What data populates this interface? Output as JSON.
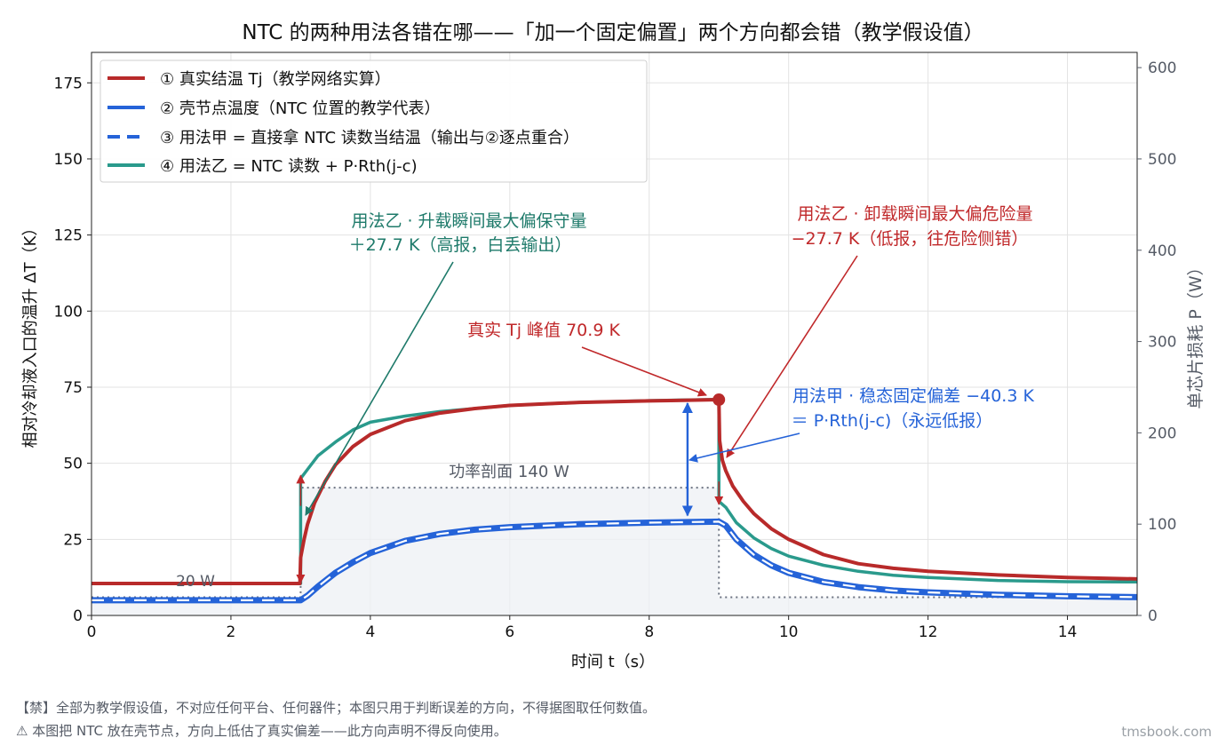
{
  "chart_data": {
    "type": "line",
    "title": "NTC 的两种用法各错在哪——「加一个固定偏置」两个方向都会错（教学假设值）",
    "xlabel": "时间 t（s）",
    "ylabel": "相对冷却液入口的温升 ΔT（K）",
    "y2label": "单芯片损耗 P（W）",
    "xlim": [
      0,
      15
    ],
    "ylim": [
      0,
      185
    ],
    "y2lim": [
      0,
      616.67
    ],
    "xticks": [
      "0",
      "2",
      "4",
      "6",
      "8",
      "10",
      "12",
      "14"
    ],
    "yticks": [
      "0",
      "25",
      "50",
      "75",
      "100",
      "125",
      "150",
      "175"
    ],
    "y2ticks": [
      "0",
      "100",
      "200",
      "300",
      "400",
      "500",
      "600"
    ],
    "grid": true,
    "legend_position": "top-left",
    "legend": [
      "① 真实结温 Tj（教学网络实算）",
      "② 壳节点温度（NTC 位置的教学代表）",
      "③ 用法甲 = 直接拿 NTC 读数当结温（输出与②逐点重合）",
      "④ 用法乙 = NTC 读数 + P·Rth(j-c)"
    ],
    "colors": {
      "tj": "#b82a2a",
      "case": "#2563d8",
      "methodA": "#2563d8",
      "methodB": "#2a9a8c",
      "power": "#6b7280",
      "annGreen": "#1e7a6a",
      "annRed": "#c0282a",
      "annBlue": "#2563d8"
    },
    "series": [
      {
        "name": "① 真实结温 Tj（教学网络实算）",
        "x": [
          0,
          2.99,
          3.0,
          3.05,
          3.1,
          3.2,
          3.35,
          3.5,
          3.75,
          4,
          4.5,
          5,
          5.5,
          6,
          7,
          8,
          9.0,
          9.01,
          9.05,
          9.1,
          9.2,
          9.35,
          9.5,
          9.75,
          10,
          10.5,
          11,
          11.5,
          12,
          13,
          14,
          15
        ],
        "y": [
          10.5,
          10.5,
          19,
          25,
          30,
          37,
          44,
          49.5,
          55.5,
          59.5,
          64,
          66.5,
          68,
          69,
          70,
          70.5,
          70.9,
          57.5,
          51,
          47.5,
          42.5,
          37.5,
          33.5,
          28.5,
          25,
          20,
          17,
          15.5,
          14.5,
          13.3,
          12.5,
          12.0
        ]
      },
      {
        "name": "② 壳节点温度（NTC 位置的教学代表）",
        "x": [
          0,
          3.0,
          3.1,
          3.25,
          3.5,
          3.75,
          4,
          4.5,
          5,
          5.5,
          6,
          7,
          8,
          9.0,
          9.1,
          9.25,
          9.5,
          9.75,
          10,
          10.5,
          11,
          11.5,
          12,
          13,
          14,
          15
        ],
        "y": [
          5,
          5,
          6.5,
          9.5,
          14,
          17.5,
          20.5,
          24.5,
          26.8,
          28.2,
          29.0,
          30.0,
          30.5,
          30.8,
          29.5,
          25,
          20,
          16.5,
          14,
          11,
          9.3,
          8.2,
          7.6,
          6.8,
          6.3,
          6.0
        ]
      },
      {
        "name": "③ 用法甲 = 直接拿 NTC 读数当结温（输出与②逐点重合）",
        "x": [
          0,
          3.0,
          3.1,
          3.25,
          3.5,
          3.75,
          4,
          4.5,
          5,
          5.5,
          6,
          7,
          8,
          9.0,
          9.1,
          9.25,
          9.5,
          9.75,
          10,
          10.5,
          11,
          11.5,
          12,
          13,
          14,
          15
        ],
        "y": [
          5,
          5,
          6.5,
          9.5,
          14,
          17.5,
          20.5,
          24.5,
          26.8,
          28.2,
          29.0,
          30.0,
          30.5,
          30.8,
          29.5,
          25,
          20,
          16.5,
          14,
          11,
          9.3,
          8.2,
          7.6,
          6.8,
          6.3,
          6.0
        ]
      },
      {
        "name": "④ 用法乙 = NTC 读数 + P·Rth(j-c)",
        "x": [
          0,
          3.0,
          3.0,
          3.1,
          3.25,
          3.5,
          3.75,
          4,
          4.5,
          5,
          5.5,
          6,
          7,
          8,
          9.0,
          9.0,
          9.1,
          9.25,
          9.5,
          9.75,
          10,
          10.5,
          11,
          11.5,
          12,
          13,
          14,
          15
        ],
        "y": [
          10.5,
          10.5,
          45,
          48,
          52.5,
          57,
          61,
          63.5,
          65.5,
          67,
          68,
          69,
          70,
          70.6,
          71,
          37.5,
          35.5,
          30.5,
          25.5,
          22,
          19.5,
          16.5,
          14.5,
          13.2,
          12.5,
          11.5,
          11.1,
          11.0
        ]
      }
    ],
    "power_profile": {
      "name": "功率剖面 140 W",
      "x": [
        0,
        3.0,
        3.0,
        9.0,
        9.0,
        15
      ],
      "p": [
        20,
        20,
        140,
        140,
        20,
        20
      ]
    },
    "markers": {
      "peak_x": 9.0,
      "peak_y": 70.9,
      "double_arrow_x": 8.55,
      "double_arrow_y": [
        30.5,
        70.9
      ]
    },
    "annotations": {
      "power_label": "功率剖面 140 W",
      "low_power_label": "20 W",
      "b_rise_1": "用法乙 · 升载瞬间最大偏保守量",
      "b_rise_2": "＋27.7 K（高报，白丢输出）",
      "b_fall_1": "用法乙 · 卸载瞬间最大偏危险量",
      "b_fall_2": "−27.7 K（低报，往危险侧错）",
      "peak": "真实 Tj 峰值 70.9 K",
      "a_off_1": "用法甲 · 稳态固定偏差 −40.3 K",
      "a_off_2": "＝ P·Rth(j-c)（永远低报）"
    }
  },
  "footer": {
    "line1": "【禁】全部为教学假设值，不对应任何平台、任何器件；本图只用于判断误差的方向，不得据图取任何数值。",
    "line2": "⚠ 本图把 NTC 放在壳节点，方向上低估了真实偏差——此方向声明不得反向使用。",
    "brand": "tmsbook.com"
  }
}
